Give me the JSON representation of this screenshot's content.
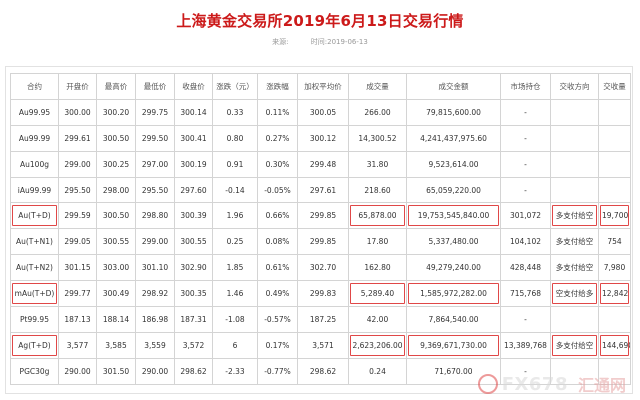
{
  "header": {
    "title": "上海黄金交易所2019年6月13日交易行情",
    "source_label": "来源:",
    "time_label": "时间:2019-06-13"
  },
  "table": {
    "columns": [
      "合约",
      "开盘价",
      "最高价",
      "最低价",
      "收盘价",
      "涨跌（元）",
      "涨跌幅",
      "加权平均价",
      "成交量",
      "成交金额",
      "市场持仓",
      "交收方向",
      "交收量"
    ],
    "rows": [
      [
        "Au99.95",
        "300.00",
        "300.20",
        "299.75",
        "300.14",
        "0.33",
        "0.11%",
        "300.05",
        "266.00",
        "79,815,600.00",
        "-",
        "",
        ""
      ],
      [
        "Au99.99",
        "299.61",
        "300.50",
        "299.50",
        "300.41",
        "0.80",
        "0.27%",
        "300.12",
        "14,300.52",
        "4,241,437,975.60",
        "-",
        "",
        ""
      ],
      [
        "Au100g",
        "299.00",
        "300.25",
        "297.00",
        "300.19",
        "0.91",
        "0.30%",
        "299.48",
        "31.80",
        "9,523,614.00",
        "-",
        "",
        ""
      ],
      [
        "iAu99.99",
        "295.50",
        "298.00",
        "295.50",
        "297.60",
        "-0.14",
        "-0.05%",
        "297.61",
        "218.60",
        "65,059,220.00",
        "-",
        "",
        ""
      ],
      [
        "Au(T+D)",
        "299.59",
        "300.50",
        "298.80",
        "300.39",
        "1.96",
        "0.66%",
        "299.85",
        "65,878.00",
        "19,753,545,840.00",
        "301,072",
        "多支付给空",
        "19,700"
      ],
      [
        "Au(T+N1)",
        "299.05",
        "300.55",
        "299.00",
        "300.55",
        "0.25",
        "0.08%",
        "299.85",
        "17.80",
        "5,337,480.00",
        "104,102",
        "多支付给空",
        "754"
      ],
      [
        "Au(T+N2)",
        "301.15",
        "303.00",
        "301.10",
        "302.90",
        "1.85",
        "0.61%",
        "302.70",
        "162.80",
        "49,279,240.00",
        "428,448",
        "多支付给空",
        "7,980"
      ],
      [
        "mAu(T+D)",
        "299.77",
        "300.49",
        "298.92",
        "300.35",
        "1.46",
        "0.49%",
        "299.83",
        "5,289.40",
        "1,585,972,282.00",
        "715,768",
        "空支付给多",
        "12,842"
      ],
      [
        "Pt99.95",
        "187.13",
        "188.14",
        "186.98",
        "187.31",
        "-1.08",
        "-0.57%",
        "187.25",
        "42.00",
        "7,864,540.00",
        "-",
        "",
        ""
      ],
      [
        "Ag(T+D)",
        "3,577",
        "3,585",
        "3,559",
        "3,572",
        "6",
        "0.17%",
        "3,571",
        "2,623,206.00",
        "9,369,671,730.00",
        "13,389,768",
        "多支付给空",
        "144,690"
      ],
      [
        "PGC30g",
        "290.00",
        "301.50",
        "290.00",
        "298.62",
        "-2.33",
        "-0.77%",
        "298.62",
        "0.24",
        "71,670.00",
        "-",
        "",
        ""
      ]
    ],
    "highlight_color": "#e04848"
  },
  "watermark": {
    "text": "FX678",
    "text2": "汇通网"
  }
}
